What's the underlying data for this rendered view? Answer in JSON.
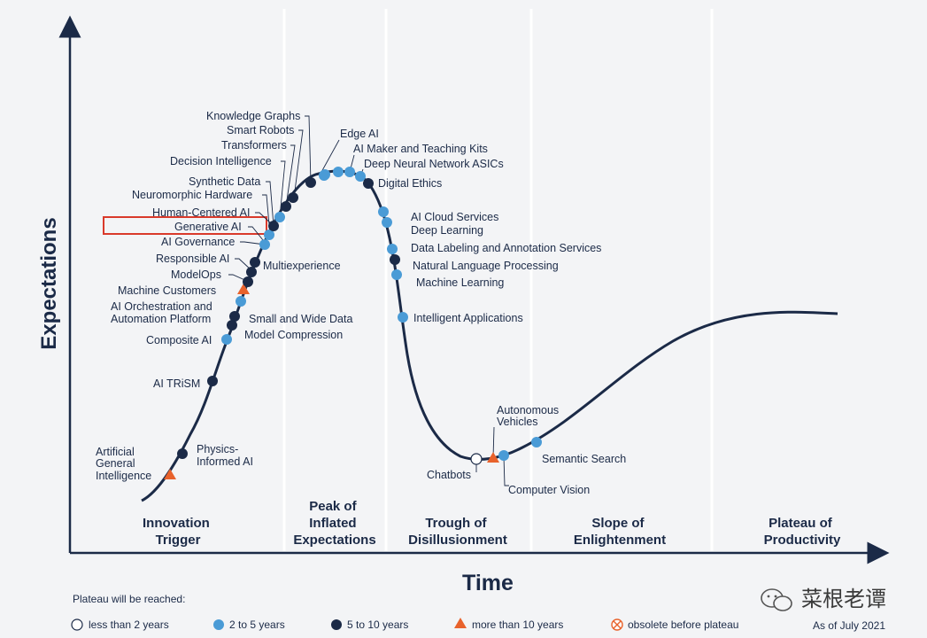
{
  "axes": {
    "y_title": "Expectations",
    "x_title": "Time"
  },
  "phases": [
    {
      "lines": [
        "Innovation",
        "Trigger"
      ]
    },
    {
      "lines": [
        "Peak of",
        "Inflated",
        "Expectations"
      ]
    },
    {
      "lines": [
        "Trough of",
        "Disillusionment"
      ]
    },
    {
      "lines": [
        "Slope of",
        "Enlightenment"
      ]
    },
    {
      "lines": [
        "Plateau of",
        "Productivity"
      ]
    }
  ],
  "colors": {
    "navy": "#1b2a47",
    "light_blue": "#4a9bd6",
    "orange": "#e8622c",
    "highlight_red": "#d93a2b",
    "background": "#f3f4f6"
  },
  "categories": {
    "lt2": "less than 2 years",
    "2to5": "2 to 5 years",
    "5to10": "5 to 10 years",
    "gt10": "more than 10 years",
    "obsolete": "obsolete before plateau"
  },
  "technologies": [
    {
      "name": "Artificial General Intelligence",
      "category": "gt10"
    },
    {
      "name": "Physics-Informed AI",
      "category": "5to10"
    },
    {
      "name": "AI TRiSM",
      "category": "5to10"
    },
    {
      "name": "Composite AI",
      "category": "2to5"
    },
    {
      "name": "Model Compression",
      "category": "5to10"
    },
    {
      "name": "Small and Wide Data",
      "category": "5to10"
    },
    {
      "name": "AI Orchestration and Automation Platform",
      "category": "2to5"
    },
    {
      "name": "Machine Customers",
      "category": "gt10"
    },
    {
      "name": "ModelOps",
      "category": "5to10"
    },
    {
      "name": "Responsible AI",
      "category": "5to10"
    },
    {
      "name": "Multiexperience",
      "category": "5to10"
    },
    {
      "name": "AI Governance",
      "category": "2to5"
    },
    {
      "name": "Generative AI",
      "category": "2to5"
    },
    {
      "name": "Human-Centered AI",
      "category": "5to10"
    },
    {
      "name": "Neuromorphic Hardware",
      "category": "2to5"
    },
    {
      "name": "Synthetic Data",
      "category": "5to10"
    },
    {
      "name": "Decision Intelligence",
      "category": "5to10"
    },
    {
      "name": "Transformers",
      "category": "5to10"
    },
    {
      "name": "Smart Robots",
      "category": "2to5"
    },
    {
      "name": "Knowledge Graphs",
      "category": "2to5"
    },
    {
      "name": "Edge AI",
      "category": "2to5"
    },
    {
      "name": "AI Maker and Teaching Kits",
      "category": "2to5"
    },
    {
      "name": "Deep Neural Network ASICs",
      "category": "2to5"
    },
    {
      "name": "Digital Ethics",
      "category": "5to10"
    },
    {
      "name": "AI Cloud Services",
      "category": "2to5"
    },
    {
      "name": "Deep Learning",
      "category": "2to5"
    },
    {
      "name": "Data Labeling and Annotation Services",
      "category": "2to5"
    },
    {
      "name": "Natural Language Processing",
      "category": "5to10"
    },
    {
      "name": "Machine Learning",
      "category": "2to5"
    },
    {
      "name": "Intelligent Applications",
      "category": "2to5"
    },
    {
      "name": "Chatbots",
      "category": "lt2"
    },
    {
      "name": "Autonomous Vehicles",
      "category": "gt10"
    },
    {
      "name": "Computer Vision",
      "category": "2to5"
    },
    {
      "name": "Semantic Search",
      "category": "2to5"
    }
  ],
  "highlighted": "Generative AI",
  "legend": {
    "title": "Plateau will be reached:",
    "items": [
      {
        "shape": "open-circle",
        "label": "less than 2 years"
      },
      {
        "shape": "light-circle",
        "label": "2 to 5 years"
      },
      {
        "shape": "dark-circle",
        "label": "5 to 10 years"
      },
      {
        "shape": "triangle",
        "label": "more than 10 years"
      },
      {
        "shape": "crossed-circle",
        "label": "obsolete before plateau"
      }
    ]
  },
  "as_of": "As of July 2021",
  "watermark": "菜根老谭"
}
